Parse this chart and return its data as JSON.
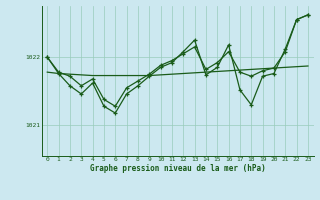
{
  "title": "Graphe pression niveau de la mer (hPa)",
  "background_color": "#cce8f0",
  "line_color": "#1a5c1a",
  "grid_color": "#99ccbb",
  "xlim": [
    -0.5,
    23.5
  ],
  "ylim": [
    1020.55,
    1022.75
  ],
  "yticks": [
    1021,
    1022
  ],
  "xticks": [
    0,
    1,
    2,
    3,
    4,
    5,
    6,
    7,
    8,
    9,
    10,
    11,
    12,
    13,
    14,
    15,
    16,
    17,
    18,
    19,
    20,
    21,
    22,
    23
  ],
  "series_flat": [
    1021.78,
    1021.76,
    1021.75,
    1021.74,
    1021.73,
    1021.73,
    1021.73,
    1021.73,
    1021.73,
    1021.73,
    1021.74,
    1021.75,
    1021.76,
    1021.77,
    1021.78,
    1021.79,
    1021.8,
    1021.81,
    1021.82,
    1021.83,
    1021.84,
    1021.85,
    1021.86,
    1021.87
  ],
  "series_main": [
    1022.0,
    1021.78,
    1021.72,
    1021.58,
    1021.68,
    1021.38,
    1021.28,
    1021.55,
    1021.65,
    1021.75,
    1021.88,
    1021.95,
    1022.05,
    1022.15,
    1021.82,
    1021.92,
    1022.08,
    1021.78,
    1021.72,
    1021.8,
    1021.84,
    1022.08,
    1022.55,
    1022.62
  ],
  "series_volatile": [
    1022.0,
    1021.76,
    1021.58,
    1021.46,
    1021.62,
    1021.28,
    1021.18,
    1021.46,
    1021.58,
    1021.72,
    1021.85,
    1021.92,
    1022.08,
    1022.25,
    1021.74,
    1021.85,
    1022.18,
    1021.52,
    1021.3,
    1021.72,
    1021.76,
    1022.12,
    1022.55,
    1022.62
  ]
}
